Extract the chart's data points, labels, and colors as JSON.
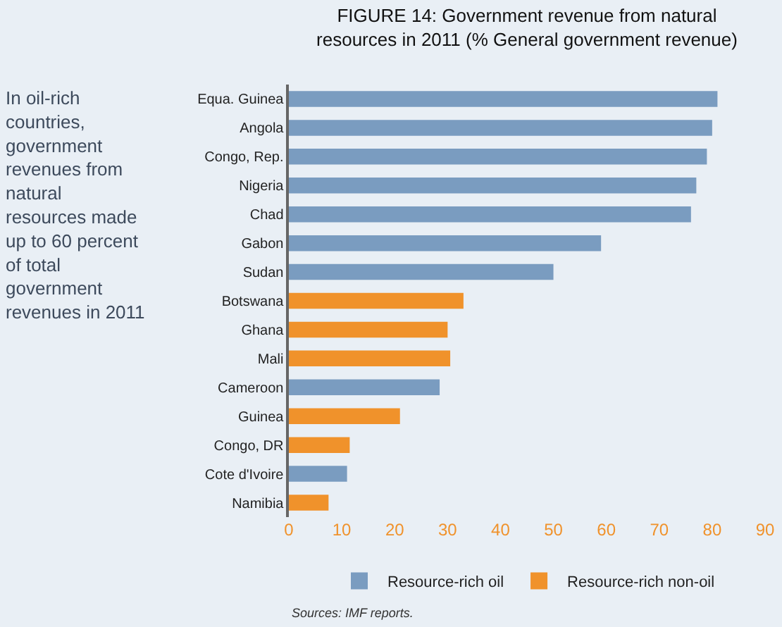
{
  "chart_data": {
    "type": "bar",
    "orientation": "horizontal",
    "title": "FIGURE 14: Government revenue from natural resources in 2011 (% General government revenue)",
    "categories": [
      "Equa. Guinea",
      "Angola",
      "Congo, Rep.",
      "Nigeria",
      "Chad",
      "Gabon",
      "Sudan",
      "Botswana",
      "Ghana",
      "Mali",
      "Cameroon",
      "Guinea",
      "Congo, DR",
      "Cote d'Ivoire",
      "Namibia"
    ],
    "series": [
      {
        "name": "Resource-rich oil",
        "color": "#7a9cc0",
        "values": [
          81,
          80,
          79,
          77,
          76,
          59,
          50,
          null,
          null,
          null,
          28.5,
          null,
          null,
          11,
          null
        ]
      },
      {
        "name": "Resource-rich non-oil",
        "color": "#f0922b",
        "values": [
          null,
          null,
          null,
          null,
          null,
          null,
          null,
          33,
          30,
          30.5,
          null,
          21,
          11.5,
          null,
          7.5
        ]
      }
    ],
    "xlim": [
      0,
      90
    ],
    "xticks": [
      0,
      10,
      20,
      30,
      40,
      50,
      60,
      70,
      80,
      90
    ],
    "grid": false,
    "legend": "bottom",
    "annotations": [
      "In oil-rich countries, government revenues from natural resources made up to 60 percent of total government revenues in 2011",
      "Sources: IMF reports."
    ]
  }
}
